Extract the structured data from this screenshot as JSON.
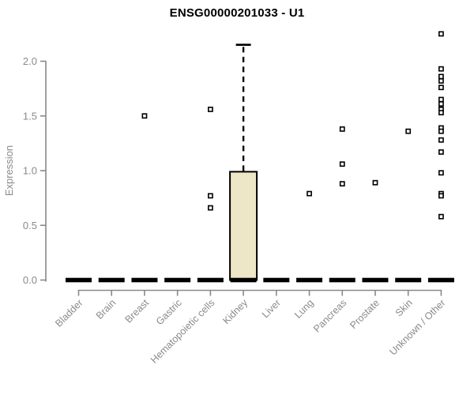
{
  "chart_data": {
    "type": "boxplot",
    "title": "ENSG00000201033 - U1",
    "ylabel": "Expression",
    "xlabel": "",
    "ylim": [
      0,
      2.0
    ],
    "ytick_labels": [
      "0.0",
      "0.5",
      "1.0",
      "1.5",
      "2.0"
    ],
    "ytick_values": [
      0,
      0.5,
      1.0,
      1.5,
      2.0
    ],
    "grid": false,
    "legend": false,
    "categories": [
      "Bladder",
      "Brain",
      "Breast",
      "Gastric",
      "Hematopoietic cells",
      "Kidney",
      "Liver",
      "Lung",
      "Pancreas",
      "Prostate",
      "Skin",
      "Unknown / Other"
    ],
    "boxes": [
      {
        "category": "Bladder",
        "q1": 0,
        "median": 0,
        "q3": 0,
        "whisker_low": 0,
        "whisker_high": 0,
        "outliers": []
      },
      {
        "category": "Brain",
        "q1": 0,
        "median": 0,
        "q3": 0,
        "whisker_low": 0,
        "whisker_high": 0,
        "outliers": []
      },
      {
        "category": "Breast",
        "q1": 0,
        "median": 0,
        "q3": 0,
        "whisker_low": 0,
        "whisker_high": 0,
        "outliers": [
          1.5
        ]
      },
      {
        "category": "Gastric",
        "q1": 0,
        "median": 0,
        "q3": 0,
        "whisker_low": 0,
        "whisker_high": 0,
        "outliers": []
      },
      {
        "category": "Hematopoietic cells",
        "q1": 0,
        "median": 0,
        "q3": 0,
        "whisker_low": 0,
        "whisker_high": 0,
        "outliers": [
          1.56,
          0.77,
          0.66
        ]
      },
      {
        "category": "Kidney",
        "q1": 0,
        "median": 0,
        "q3": 0.99,
        "whisker_low": 0,
        "whisker_high": 2.15,
        "outliers": []
      },
      {
        "category": "Liver",
        "q1": 0,
        "median": 0,
        "q3": 0,
        "whisker_low": 0,
        "whisker_high": 0,
        "outliers": []
      },
      {
        "category": "Lung",
        "q1": 0,
        "median": 0,
        "q3": 0,
        "whisker_low": 0,
        "whisker_high": 0,
        "outliers": [
          0.79
        ]
      },
      {
        "category": "Pancreas",
        "q1": 0,
        "median": 0,
        "q3": 0,
        "whisker_low": 0,
        "whisker_high": 0,
        "outliers": [
          1.38,
          1.06,
          0.88
        ]
      },
      {
        "category": "Prostate",
        "q1": 0,
        "median": 0,
        "q3": 0,
        "whisker_low": 0,
        "whisker_high": 0,
        "outliers": [
          0.89
        ]
      },
      {
        "category": "Skin",
        "q1": 0,
        "median": 0,
        "q3": 0,
        "whisker_low": 0,
        "whisker_high": 0,
        "outliers": [
          1.36
        ]
      },
      {
        "category": "Unknown / Other",
        "q1": 0,
        "median": 0,
        "q3": 0,
        "whisker_low": 0,
        "whisker_high": 0,
        "outliers": [
          2.25,
          1.93,
          1.86,
          1.82,
          1.76,
          1.65,
          1.61,
          1.56,
          1.53,
          1.39,
          1.36,
          1.28,
          1.17,
          0.98,
          0.79,
          0.77,
          0.58
        ]
      }
    ],
    "style": {
      "box_fill": "#EDE7C7",
      "box_stroke": "#000000",
      "axis_color": "#898989",
      "tick_label_color": "#8a8a8a",
      "title_color": "#000000",
      "background": "#ffffff",
      "outlier_fill": "#ffffff",
      "outlier_stroke": "#000000"
    }
  }
}
